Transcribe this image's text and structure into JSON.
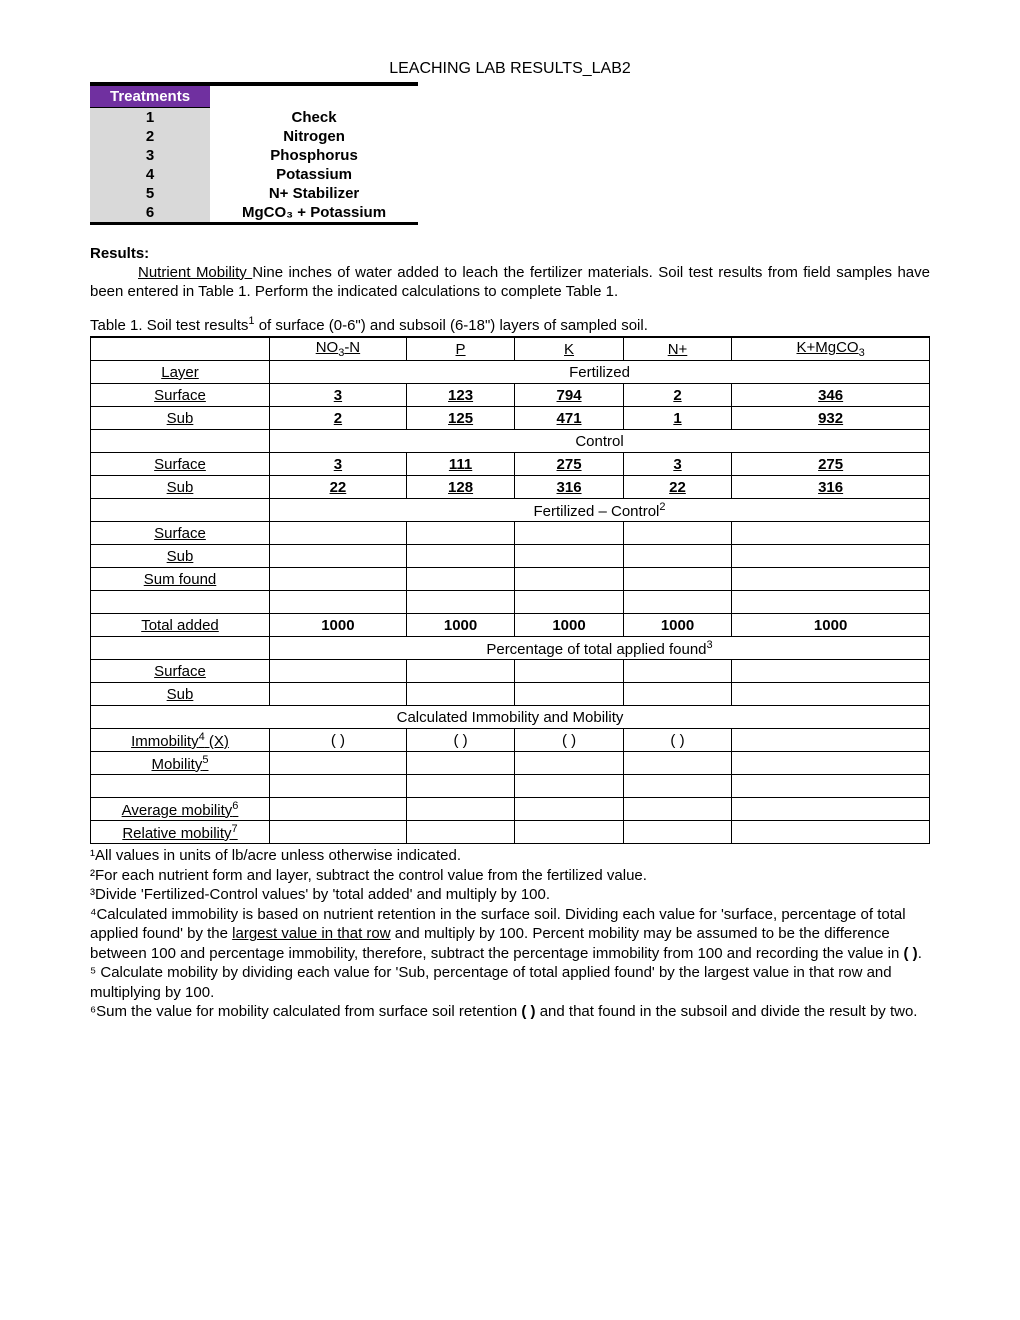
{
  "title": "LEACHING LAB RESULTS_LAB2",
  "treatments_header": "Treatments",
  "treatments": [
    {
      "n": "1",
      "label": "Check"
    },
    {
      "n": "2",
      "label": "Nitrogen"
    },
    {
      "n": "3",
      "label": "Phosphorus"
    },
    {
      "n": "4",
      "label": "Potassium"
    },
    {
      "n": "5",
      "label": "N+ Stabilizer"
    },
    {
      "n": "6",
      "label": "MgCO₃ + Potassium"
    }
  ],
  "results_head": "Results:",
  "results_para": "Nutrient Mobility Nine inches of water added to leach the fertilizer materials.  Soil test results from field samples have been entered in Table 1.  Perform the indicated calculations to complete Table 1.",
  "nutrient_label": "Nutrient Mobility ",
  "caption_pre": "Table 1.   Soil test results",
  "caption_post": " of surface (0-6\") and subsoil (6-18\") layers of sampled soil.",
  "cols": {
    "layer": "Layer",
    "no3": "NO₃-N",
    "p": "P",
    "k": "K",
    "nplus": "N+",
    "kmg": "K+MgCO₃"
  },
  "section_labels": {
    "fertilized": "Fertilized",
    "control": "Control",
    "fc": "Fertilized – Control²",
    "pct": "Percentage of total applied found³",
    "calc": "Calculated Immobility and Mobility"
  },
  "row_labels": {
    "surface": "Surface",
    "sub": "Sub",
    "sum": "Sum found",
    "total": "Total added",
    "immob": "Immobility⁴ (X)",
    "mob": "Mobility⁵",
    "avg": "Average mobility⁶",
    "rel": "Relative mobility⁷"
  },
  "fertilized": {
    "surface": {
      "no3": "3",
      "p": "123",
      "k": "794",
      "nplus": "2",
      "kmg": "346"
    },
    "sub": {
      "no3": "2",
      "p": "125",
      "k": "471",
      "nplus": "1",
      "kmg": "932"
    }
  },
  "control": {
    "surface": {
      "no3": "3",
      "p": "111",
      "k": "275",
      "nplus": "3",
      "kmg": "275"
    },
    "sub": {
      "no3": "22",
      "p": "128",
      "k": "316",
      "nplus": "22",
      "kmg": "316"
    }
  },
  "total_added": {
    "no3": "1000",
    "p": "1000",
    "k": "1000",
    "nplus": "1000",
    "kmg": "1000"
  },
  "paren": "(       )",
  "footnotes": {
    "f1": "¹All values in units of lb/acre unless otherwise indicated.",
    "f2": "²For each nutrient form and layer, subtract the control value from the fertilized value.",
    "f3": "³Divide 'Fertilized-Control values' by 'total added' and multiply by 100.",
    "f4a": "⁴Calculated immobility is based on nutrient retention in the surface soil.  Dividing each value for 'surface, percentage of total applied found' by the ",
    "f4u": "largest value in that row",
    "f4b": " and multiply by 100.  Percent mobility may be assumed to be the difference between 100 and percentage immobility, therefore, subtract the percentage immobility from 100 and recording the value in ",
    "f4c": "(     )",
    "f4d": ".",
    "f5": "⁵ Calculate mobility by dividing each value for 'Sub, percentage of total applied found' by the largest value in that row and multiplying by 100.",
    "f6a": "⁶Sum the value for mobility calculated from surface soil retention ",
    "f6b": "(     )",
    "f6c": " and that found in the subsoil and divide the result by two."
  },
  "colors": {
    "header_bg": "#7030a0",
    "header_fg": "#ffffff",
    "shade": "#d9d9d9",
    "border": "#000000"
  }
}
